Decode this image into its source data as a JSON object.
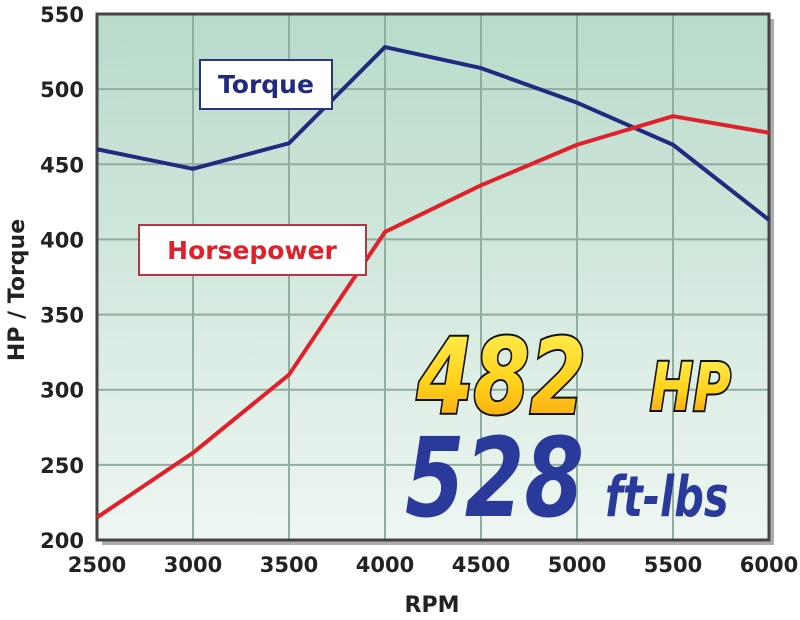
{
  "chart_data": {
    "type": "line",
    "title": "",
    "xlabel": "RPM",
    "ylabel": "HP / Torque",
    "xlim": [
      2500,
      6000
    ],
    "ylim": [
      200,
      550
    ],
    "grid": true,
    "x": [
      2500,
      3000,
      3500,
      4000,
      4500,
      5000,
      5500,
      6000
    ],
    "xticks": [
      "2500",
      "3000",
      "3500",
      "4000",
      "4500",
      "5000",
      "5500",
      "6000"
    ],
    "yticks": [
      "200",
      "250",
      "300",
      "350",
      "400",
      "450",
      "500",
      "550"
    ],
    "series": [
      {
        "name": "Torque",
        "color": "#1f2a80",
        "values": [
          460,
          447,
          464,
          528,
          514,
          491,
          463,
          413
        ]
      },
      {
        "name": "Horsepower",
        "color": "#e0202a",
        "values": [
          215,
          258,
          310,
          405,
          436,
          463,
          482,
          471
        ]
      }
    ],
    "annotations": {
      "hp_value": "482",
      "hp_unit": "HP",
      "torque_value": "528",
      "torque_unit": "ft-lbs"
    },
    "colors": {
      "plot_bg_top": "#b8dbca",
      "plot_bg_bottom": "#eaf4ef",
      "hp_annotation_fill": "#ffd21a",
      "torque_annotation_fill": "#2a3a9a"
    }
  }
}
